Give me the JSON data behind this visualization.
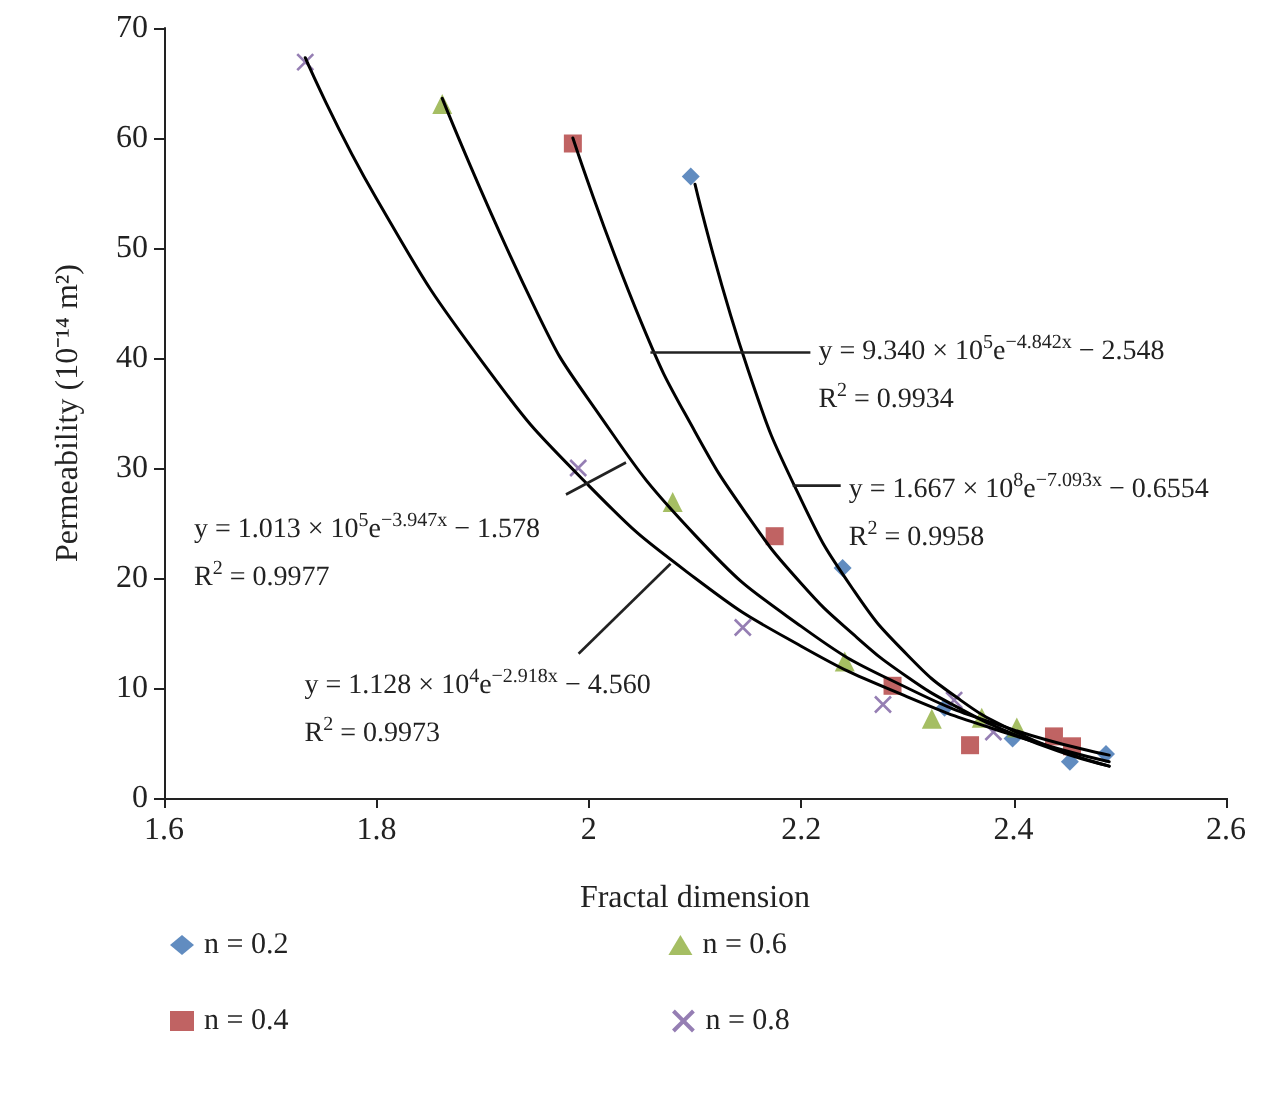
{
  "chart_data": {
    "type": "scatter",
    "xlabel": "Fractal dimension",
    "ylabel": "Permeability (10⁻¹⁴ m²)",
    "xlim": [
      1.6,
      2.6
    ],
    "xticks": [
      1.6,
      1.8,
      2,
      2.2,
      2.4,
      2.6
    ],
    "ylim": [
      0,
      70
    ],
    "yticks": [
      0,
      10,
      20,
      30,
      40,
      50,
      60,
      70
    ],
    "grid": false,
    "legend": "bottom",
    "series": [
      {
        "name": "n = 0.2",
        "color": "#3a6fb0",
        "marker": "diamond",
        "x": [
          2.096,
          2.239,
          2.335,
          2.399,
          2.453,
          2.487
        ],
        "values": [
          56.5,
          20.9,
          8.2,
          5.4,
          3.3,
          4.0
        ]
      },
      {
        "name": "n = 0.4",
        "color": "#b03c3c",
        "marker": "square",
        "x": [
          1.985,
          2.175,
          2.286,
          2.359,
          2.438,
          2.455
        ],
        "values": [
          59.5,
          23.8,
          10.2,
          4.8,
          5.6,
          4.7
        ]
      },
      {
        "name": "n = 0.6",
        "color": "#8fae3c",
        "marker": "triangle",
        "x": [
          1.862,
          2.079,
          2.241,
          2.323,
          2.37,
          2.403
        ],
        "values": [
          63.1,
          26.9,
          12.4,
          7.2,
          7.3,
          6.4
        ]
      },
      {
        "name": "n = 0.8",
        "color": "#7b5ea0",
        "marker": "cross",
        "x": [
          1.733,
          1.99,
          2.145,
          2.277,
          2.344,
          2.381
        ],
        "values": [
          66.9,
          30.0,
          15.5,
          8.5,
          8.9,
          6.0
        ]
      },
      {
        "type": "line",
        "color": "#000000",
        "marker": "none",
        "x": [
          2.1,
          2.15,
          2.2,
          2.25,
          2.3,
          2.35,
          2.4,
          2.45,
          2.49
        ],
        "values": [
          55.8,
          38.9,
          27.1,
          18.8,
          13.0,
          8.9,
          6.1,
          4.1,
          2.9
        ]
      },
      {
        "type": "line",
        "color": "#000000",
        "marker": "none",
        "x": [
          1.985,
          2.05,
          2.1,
          2.15,
          2.2,
          2.25,
          2.3,
          2.35,
          2.4,
          2.45,
          2.49
        ],
        "values": [
          60.0,
          43.1,
          33.3,
          25.6,
          19.5,
          14.8,
          11.0,
          8.1,
          5.8,
          4.0,
          2.9
        ]
      },
      {
        "type": "line",
        "color": "#000000",
        "marker": "none",
        "x": [
          1.862,
          1.95,
          2.0,
          2.1,
          2.2,
          2.3,
          2.4,
          2.49
        ],
        "values": [
          63.6,
          44.4,
          36.2,
          23.9,
          15.6,
          10.0,
          6.2,
          3.9
        ]
      },
      {
        "type": "line",
        "color": "#000000",
        "marker": "none",
        "x": [
          1.733,
          1.8,
          1.9,
          2.0,
          2.1,
          2.2,
          2.3,
          2.4,
          2.49
        ],
        "values": [
          67.3,
          54.5,
          39.6,
          28.4,
          20.0,
          13.8,
          9.2,
          5.7,
          3.3
        ]
      }
    ],
    "annotations": [
      {
        "text": "y = 9.340 × 10$^{5}$e$^{−4.842x}$ − 2.548",
        "x": 2.058,
        "y": 40.5
      },
      "R$^{2}$ = 0.9934",
      {
        "text": "y = 1.667 × 10$^{8}$e$^{−7.093x}$ − 0.6554",
        "x": 2.192,
        "y": 28.4
      },
      "R$^{2}$ = 0.9958",
      {
        "text": "y = 1.013 × 10$^{5}$e$^{−3.947x}$ − 1.578",
        "x": 2.035,
        "y": 30.5
      },
      "R$^{2}$ = 0.9977",
      {
        "text": "y = 1.128 × 10$^{4}$e$^{−2.918x}$ − 4.560",
        "x": 2.077,
        "y": 21.3
      },
      "R$^{2}$ = 0.9973"
    ]
  }
}
